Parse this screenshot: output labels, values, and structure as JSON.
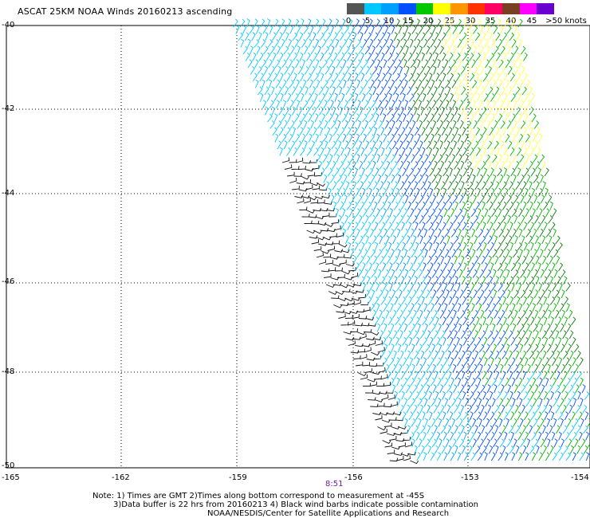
{
  "title": "ASCAT 25KM NOAA Winds 20160213 ascending",
  "legend": {
    "colors": [
      "#555555",
      "#00c8ff",
      "#00a0ff",
      "#0050ff",
      "#00c800",
      "#ffff00",
      "#ff9600",
      "#ff3200",
      "#ff0064",
      "#784020",
      "#ff00ff",
      "#6a00d0"
    ],
    "labels": [
      "0",
      "5",
      "10",
      "15",
      "20",
      "25",
      "30",
      "35",
      "40",
      "45",
      ">50 knots"
    ]
  },
  "axes": {
    "lat_labels": [
      "-40",
      "-42",
      "-44",
      "-46",
      "-48",
      "-50"
    ],
    "lon_labels": [
      "-165",
      "-162",
      "-159",
      "-156",
      "-153",
      "-154"
    ]
  },
  "time_label": "8:51",
  "notes": [
    "Note: 1) Times are GMT 2)Times along bottom correspond to measurement at -45S",
    "3)Data buffer is 22 hrs from 20160213 4) Black wind barbs indicate possible contamination",
    "NOAA/NESDIS/Center for Satellite Applications and Research"
  ],
  "map_data": {
    "lat_range": [
      -50,
      -40
    ],
    "lon_range": [
      -165,
      -152
    ],
    "grid": "dotted",
    "swath": "ascending pass, wind barbs"
  }
}
